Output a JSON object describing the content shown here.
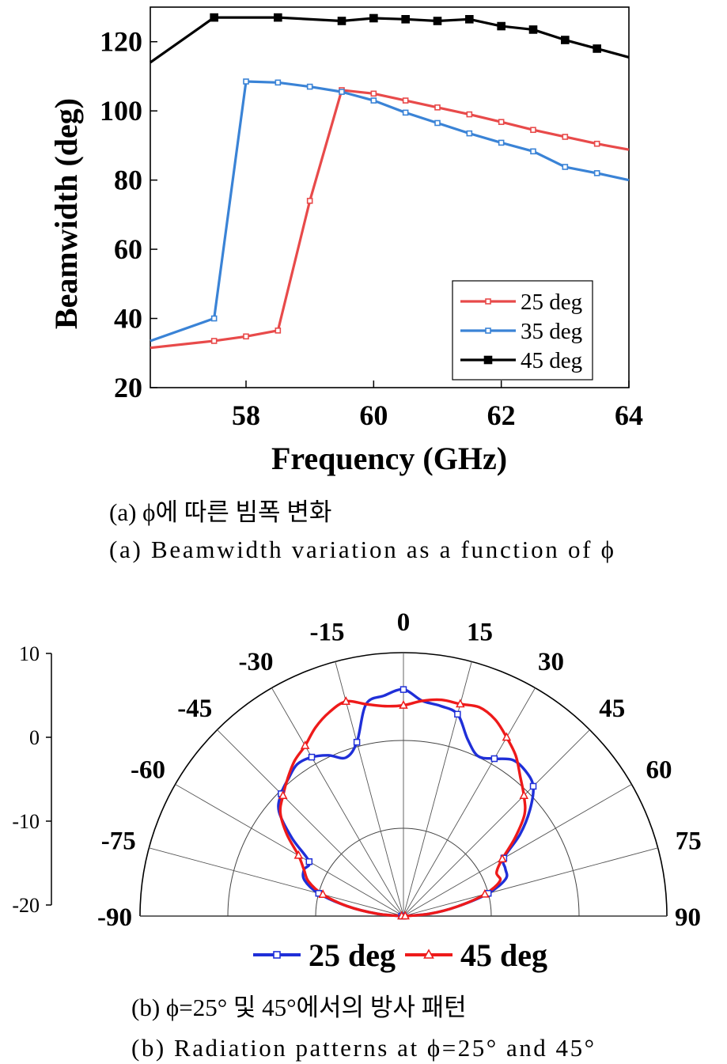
{
  "colors": {
    "red": "#e84a4a",
    "blue": "#3a83d6",
    "black": "#000000",
    "polar_blue": "#1f2fd8",
    "polar_red": "#ee1a1a"
  },
  "chart_data": [
    {
      "type": "line",
      "xlabel": "Frequency (GHz)",
      "ylabel": "Beamwidth (deg)",
      "xlim": [
        56.5,
        64
      ],
      "ylim": [
        20,
        130
      ],
      "xticks": [
        "58",
        "60",
        "62",
        "64"
      ],
      "yticks": [
        "20",
        "40",
        "60",
        "80",
        "100",
        "120"
      ],
      "caption_kr": "(a) ϕ에 따른 빔폭 변화",
      "caption_en": "(a) Beamwidth variation as a function of ϕ",
      "legend_position": "bottom-right",
      "series": [
        {
          "name": "25 deg",
          "color": "#e84a4a",
          "marker": "hollow-square",
          "x": [
            56.5,
            57.5,
            58,
            58.5,
            59,
            59.5,
            60,
            60.5,
            61,
            61.5,
            62,
            62.5,
            63,
            63.5,
            64
          ],
          "values": [
            31.5,
            33.5,
            34.8,
            36.5,
            74,
            106,
            105,
            103,
            101,
            99,
            96.8,
            94.5,
            92.5,
            90.5,
            88.8
          ]
        },
        {
          "name": "35 deg",
          "color": "#3a83d6",
          "marker": "hollow-square",
          "x": [
            56.5,
            57.5,
            58,
            58.5,
            59,
            59.5,
            60,
            60.5,
            61,
            61.5,
            62,
            62.5,
            63,
            63.5,
            64
          ],
          "values": [
            33.5,
            40,
            108.5,
            108.2,
            107,
            105.5,
            103,
            99.5,
            96.5,
            93.5,
            90.8,
            88.3,
            83.8,
            82,
            80
          ]
        },
        {
          "name": "45 deg",
          "color": "#000000",
          "marker": "filled-square",
          "x": [
            56.5,
            57.5,
            58.5,
            59.5,
            60,
            60.5,
            61,
            61.5,
            62,
            62.5,
            63,
            63.5,
            64
          ],
          "values": [
            114,
            127,
            127,
            126,
            126.8,
            126.5,
            126,
            126.5,
            124.5,
            123.5,
            120.5,
            118,
            115.5
          ]
        }
      ]
    },
    {
      "type": "polar",
      "rlim": [
        -20,
        10
      ],
      "rticks": [
        "10",
        "0",
        "-10",
        "-20"
      ],
      "angle_labels": [
        "-90",
        "-75",
        "-60",
        "-45",
        "-30",
        "-15",
        "0",
        "15",
        "30",
        "45",
        "60",
        "75",
        "90"
      ],
      "angle_values": [
        -90,
        -75,
        -60,
        -45,
        -30,
        -15,
        0,
        15,
        30,
        45,
        60,
        75,
        90
      ],
      "caption_kr": "(b) ϕ=25° 및 45°에서의 방사 패턴",
      "caption_en": "(b) Radiation patterns at ϕ=25° and 45°",
      "legend_position": "bottom-center",
      "series": [
        {
          "name": "25 deg",
          "color": "#1f2fd8",
          "marker": "hollow-square",
          "theta": [
            -90,
            -85,
            -80,
            -75,
            -70,
            -65,
            -60,
            -55,
            -50,
            -45,
            -40,
            -35,
            -30,
            -25,
            -20,
            -15,
            -10,
            -5,
            0,
            5,
            10,
            15,
            20,
            25,
            30,
            35,
            40,
            45,
            50,
            55,
            60,
            65,
            70,
            75,
            80,
            85,
            90
          ],
          "r": [
            -19.8,
            -17,
            -13.5,
            -10,
            -8,
            -7.5,
            -7.6,
            -4.5,
            -1.5,
            -0.3,
            0.4,
            1.1,
            0.9,
            0.2,
            -0.8,
            0.5,
            4.5,
            5.2,
            5.8,
            4.6,
            4.3,
            3.8,
            1.4,
            0.1,
            0.7,
            1.7,
            1.6,
            0.9,
            -1.2,
            -3.8,
            -6.8,
            -7.2,
            -7.6,
            -10,
            -13.8,
            -17,
            -20
          ]
        },
        {
          "name": "45 deg",
          "color": "#ee1a1a",
          "marker": "hollow-triangle",
          "theta": [
            -90,
            -85,
            -80,
            -75,
            -70,
            -65,
            -60,
            -55,
            -50,
            -45,
            -40,
            -35,
            -30,
            -25,
            -20,
            -15,
            -10,
            -5,
            0,
            5,
            10,
            15,
            20,
            25,
            30,
            35,
            40,
            45,
            50,
            55,
            60,
            65,
            70,
            75,
            80,
            85,
            90
          ],
          "r": [
            -19.8,
            -17,
            -13.5,
            -10.5,
            -8.5,
            -7.5,
            -6.2,
            -3.8,
            -1.7,
            -0.6,
            0.5,
            1.6,
            2.4,
            3.7,
            4.7,
            5.3,
            4.5,
            4,
            4,
            4.6,
            5,
            5,
            5.3,
            4.7,
            3.5,
            2.3,
            0.7,
            -0.6,
            -2,
            -4.5,
            -7,
            -8.3,
            -8.3,
            -10.4,
            -13.8,
            -17,
            -19.8
          ]
        }
      ]
    }
  ]
}
